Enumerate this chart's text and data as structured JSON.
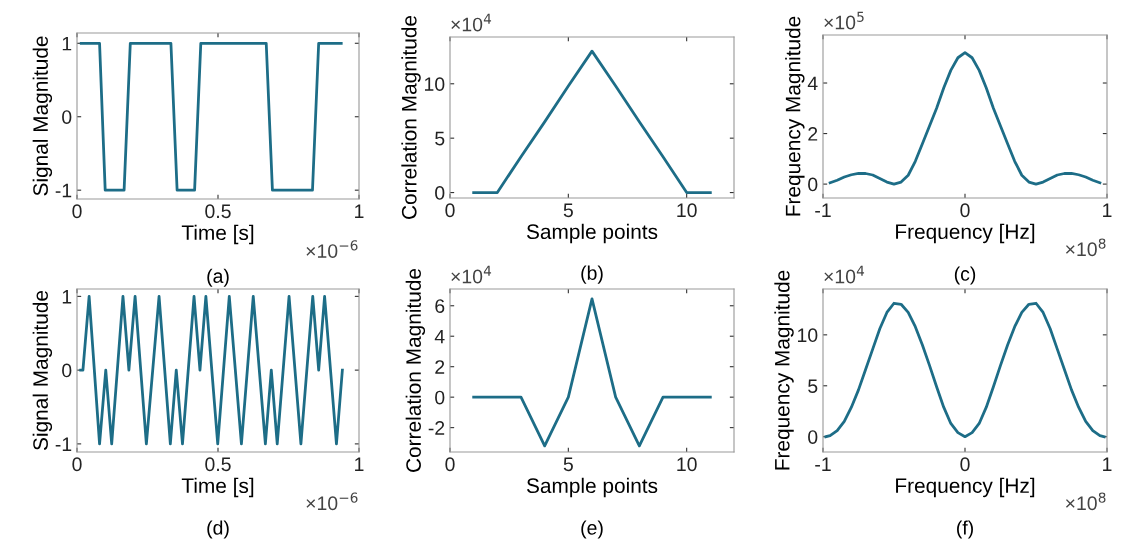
{
  "chart_data": [
    {
      "type": "line",
      "xlabel": "Time [s]",
      "ylabel": "Signal Magnitude",
      "annotations": [
        "×10$^{−6}$",
        "(a)"
      ],
      "xlim": [
        0,
        1
      ],
      "xticks": [
        0,
        0.5,
        1
      ],
      "ylim": [
        -1.12,
        1.14
      ],
      "yticks": [
        -1,
        0,
        1
      ],
      "grid": false,
      "series": [
        {
          "color": "#1d6d87",
          "x": [
            0.015,
            0.08,
            0.1,
            0.167,
            0.189,
            0.333,
            0.355,
            0.417,
            0.439,
            0.671,
            0.693,
            0.835,
            0.857,
            0.937
          ],
          "values": [
            1,
            1,
            -1,
            -1,
            1,
            1,
            -1,
            -1,
            1,
            1,
            -1,
            -1,
            1,
            1
          ]
        }
      ]
    },
    {
      "type": "line",
      "xlabel": "Sample points",
      "ylabel": "Correlation Magnitude",
      "annotations": [
        "×10$^{4}$",
        "(b)"
      ],
      "xlim": [
        0,
        12
      ],
      "xticks": [
        0,
        5,
        10
      ],
      "ylim": [
        -0.5,
        14.3
      ],
      "yticks": [
        0,
        5,
        10
      ],
      "grid": false,
      "series": [
        {
          "color": "#1d6d87",
          "x": [
            1,
            2,
            3,
            4,
            5,
            6,
            7,
            8,
            9,
            10,
            11
          ],
          "values": [
            0,
            0,
            3.3,
            6.5,
            9.8,
            13,
            9.8,
            6.5,
            3.3,
            0,
            0
          ]
        }
      ]
    },
    {
      "type": "line",
      "xlabel": "Frequency [Hz]",
      "ylabel": "Frequency Magnitude",
      "annotations": [
        "×10$^{5}$",
        "×10$^{8}$",
        "(c)"
      ],
      "xlim": [
        -1,
        1
      ],
      "xticks": [
        -1,
        0,
        1
      ],
      "ylim": [
        -0.55,
        5.9
      ],
      "yticks": [
        0,
        2,
        4
      ],
      "grid": false,
      "series": [
        {
          "color": "#1d6d87",
          "x": [
            -0.95,
            -0.9,
            -0.85,
            -0.8,
            -0.75,
            -0.7,
            -0.65,
            -0.6,
            -0.55,
            -0.5,
            -0.45,
            -0.4,
            -0.35,
            -0.3,
            -0.25,
            -0.2,
            -0.15,
            -0.1,
            -0.05,
            0,
            0.05,
            0.1,
            0.15,
            0.2,
            0.25,
            0.3,
            0.35,
            0.4,
            0.45,
            0.5,
            0.55,
            0.6,
            0.65,
            0.7,
            0.75,
            0.8,
            0.85,
            0.9,
            0.95
          ],
          "values": [
            0.05,
            0.15,
            0.28,
            0.37,
            0.42,
            0.42,
            0.36,
            0.22,
            0.08,
            0.0,
            0.08,
            0.35,
            0.9,
            1.6,
            2.3,
            3.0,
            3.8,
            4.5,
            5.0,
            5.2,
            5.0,
            4.5,
            3.8,
            3.0,
            2.3,
            1.6,
            0.9,
            0.35,
            0.08,
            0.0,
            0.08,
            0.22,
            0.36,
            0.42,
            0.42,
            0.37,
            0.28,
            0.15,
            0.05
          ]
        }
      ]
    },
    {
      "type": "line",
      "xlabel": "Time [s]",
      "ylabel": "Signal Magnitude",
      "annotations": [
        "×10$^{−6}$",
        "(d)"
      ],
      "xlim": [
        0,
        1
      ],
      "xticks": [
        0,
        0.5,
        1
      ],
      "ylim": [
        -1.11,
        1.1
      ],
      "yticks": [
        -1,
        0,
        1
      ],
      "grid": false,
      "series": [
        {
          "color": "#1d6d87",
          "x": [
            0.013,
            0.021,
            0.043,
            0.08,
            0.102,
            0.123,
            0.163,
            0.184,
            0.206,
            0.246,
            0.291,
            0.331,
            0.352,
            0.374,
            0.415,
            0.436,
            0.457,
            0.499,
            0.54,
            0.583,
            0.625,
            0.668,
            0.689,
            0.71,
            0.752,
            0.794,
            0.836,
            0.857,
            0.878,
            0.92,
            0.941
          ],
          "values": [
            0,
            0,
            1,
            -1,
            0,
            -1,
            1,
            0,
            1,
            -1,
            1,
            -1,
            0,
            -1,
            1,
            0,
            1,
            -1,
            1,
            -1,
            1,
            -1,
            0,
            -1,
            1,
            -1,
            1,
            0,
            1,
            -1,
            0
          ]
        }
      ]
    },
    {
      "type": "line",
      "xlabel": "Sample points",
      "ylabel": "Correlation Magnitude",
      "annotations": [
        "×10$^{4}$",
        "(e)"
      ],
      "xlim": [
        0,
        12
      ],
      "xticks": [
        0,
        5,
        10
      ],
      "ylim": [
        -3.6,
        7.1
      ],
      "yticks": [
        -2,
        0,
        2,
        4,
        6
      ],
      "grid": false,
      "series": [
        {
          "color": "#1d6d87",
          "x": [
            1,
            2,
            3,
            4,
            5,
            6,
            7,
            8,
            9,
            10,
            11
          ],
          "values": [
            0,
            0,
            0,
            -3.2,
            0,
            6.45,
            0,
            -3.2,
            0,
            0,
            0
          ]
        }
      ]
    },
    {
      "type": "line",
      "xlabel": "Frequency [Hz]",
      "ylabel": "Frequency Magnitude",
      "annotations": [
        "×10$^{4}$",
        "×10$^{8}$",
        "(f)"
      ],
      "xlim": [
        -1,
        1
      ],
      "xticks": [
        -1,
        0,
        1
      ],
      "ylim": [
        -1.5,
        14.5
      ],
      "yticks": [
        0,
        5,
        10
      ],
      "grid": false,
      "series": [
        {
          "color": "#1d6d87",
          "x": [
            -0.98,
            -0.95,
            -0.9,
            -0.85,
            -0.8,
            -0.75,
            -0.7,
            -0.65,
            -0.6,
            -0.55,
            -0.5,
            -0.45,
            -0.4,
            -0.35,
            -0.3,
            -0.25,
            -0.2,
            -0.15,
            -0.1,
            -0.05,
            0,
            0.05,
            0.1,
            0.15,
            0.2,
            0.25,
            0.3,
            0.35,
            0.4,
            0.45,
            0.5,
            0.55,
            0.6,
            0.65,
            0.7,
            0.75,
            0.8,
            0.85,
            0.9,
            0.95,
            0.98
          ],
          "values": [
            0,
            0.1,
            0.6,
            1.5,
            2.9,
            4.6,
            6.6,
            8.6,
            10.6,
            12.2,
            13.1,
            13.0,
            12.2,
            10.8,
            9.0,
            7.0,
            4.9,
            2.9,
            1.3,
            0.4,
            0,
            0.4,
            1.3,
            2.9,
            4.9,
            7.0,
            9.0,
            10.8,
            12.2,
            13.0,
            13.1,
            12.2,
            10.6,
            8.6,
            6.6,
            4.6,
            2.9,
            1.5,
            0.6,
            0.1,
            0
          ]
        }
      ]
    }
  ]
}
